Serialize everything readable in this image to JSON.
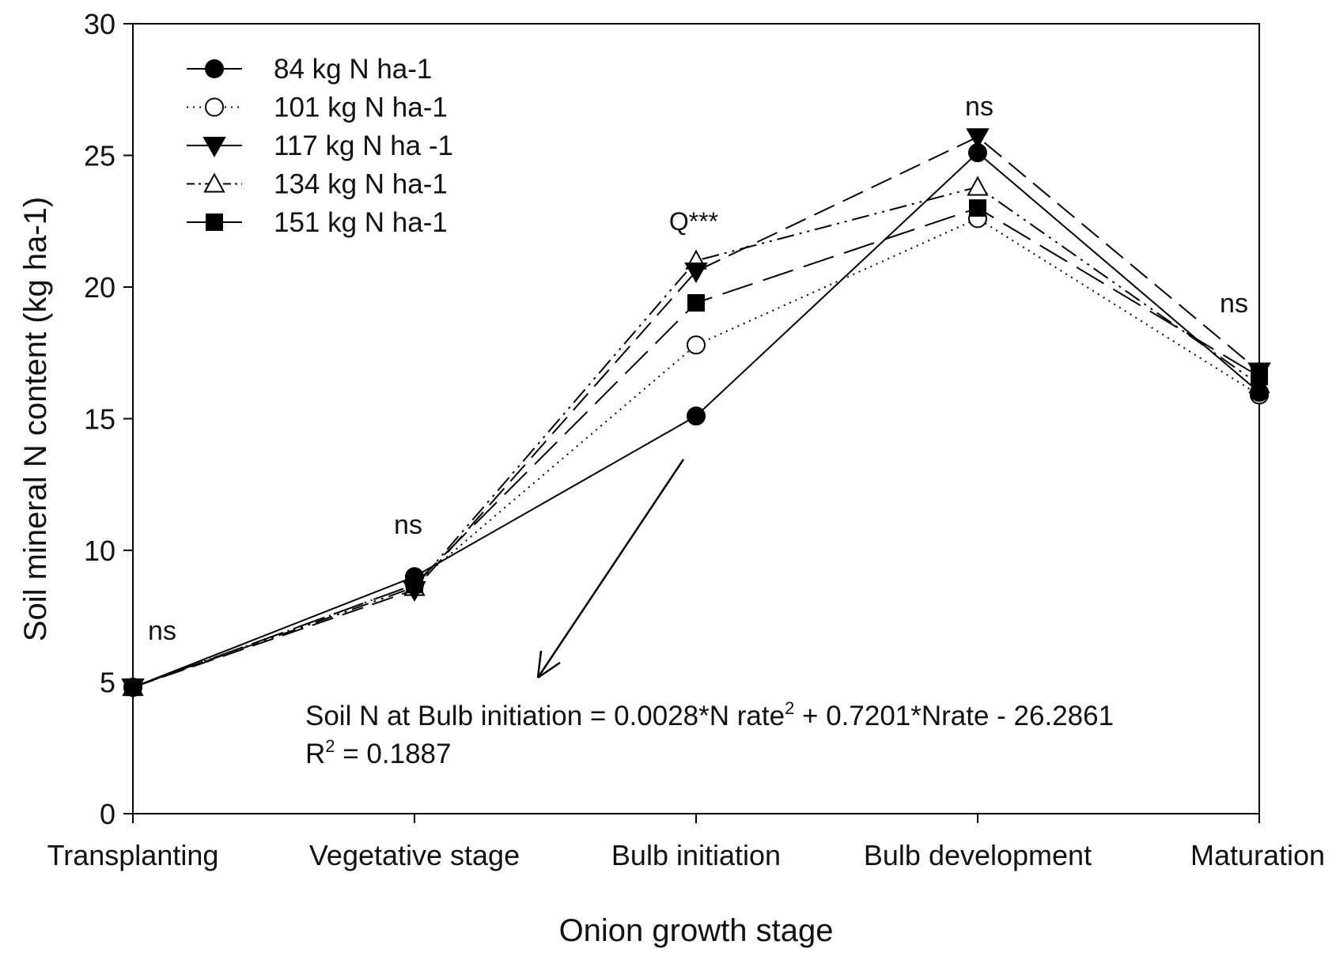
{
  "chart_data": {
    "type": "line",
    "xlabel": "Onion growth stage",
    "ylabel": "Soil mineral N content (kg ha-1)",
    "categories": [
      "Transplanting",
      "Vegetative stage",
      "Bulb initiation",
      "Bulb development",
      "Maturation"
    ],
    "ylim": [
      0,
      30
    ],
    "yticks": [
      0,
      5,
      10,
      15,
      20,
      25,
      30
    ],
    "grid": false,
    "legend_position": "top-left",
    "series": [
      {
        "name": "84 kg N ha-1",
        "marker": "circle-filled",
        "dash": "solid",
        "values": [
          4.8,
          9.0,
          15.1,
          25.1,
          16.0
        ]
      },
      {
        "name": "101 kg N ha-1",
        "marker": "circle-open",
        "dash": "dotted",
        "values": [
          4.8,
          8.7,
          17.8,
          22.6,
          15.9
        ]
      },
      {
        "name": "117 kg N ha -1",
        "marker": "triangle-down-filled",
        "dash": "long-dash",
        "values": [
          4.8,
          8.5,
          20.6,
          25.7,
          16.8
        ]
      },
      {
        "name": "134 kg N ha-1",
        "marker": "triangle-up-open",
        "dash": "dash-dot-dot",
        "values": [
          4.8,
          8.6,
          21.0,
          23.8,
          16.3
        ]
      },
      {
        "name": "151 kg N ha-1",
        "marker": "square-filled",
        "dash": "medium-dash",
        "values": [
          4.8,
          8.7,
          19.4,
          23.0,
          16.6
        ]
      }
    ],
    "significance_labels": [
      "ns",
      "ns",
      "Q***",
      "ns",
      "ns"
    ],
    "annotation": {
      "equation_prefix": "Soil N at Bulb initiation = 0.0028*N rate",
      "equation_exponent": "2",
      "equation_suffix": " + 0.7201*Nrate - 26.2861",
      "r_squared_symbol": "R",
      "r_squared_exponent": "2",
      "r_squared_value": " = 0.1887"
    }
  }
}
